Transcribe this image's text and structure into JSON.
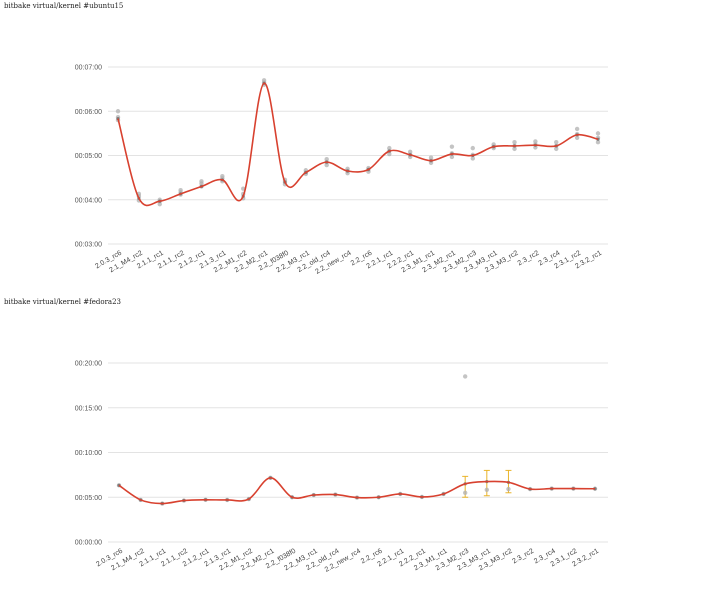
{
  "chart_data": [
    {
      "type": "scatter",
      "title": "bitbake virtual/kernel #ubuntu15",
      "xlabel": "",
      "ylabel": "",
      "y_unit": "mm:ss",
      "ylim": [
        "00:03:00",
        "00:07:00"
      ],
      "yticks": [
        "00:03:00",
        "00:04:00",
        "00:05:00",
        "00:06:00",
        "00:07:00"
      ],
      "grid": true,
      "categories": [
        "2.0.3_rc6",
        "2.1_M4_rc2",
        "2.1.1_rc1",
        "2.1.1_rc2",
        "2.1.2_rc1",
        "2.1.3_rc1",
        "2.2_M1_rc2",
        "2.2_M2_rc1",
        "2.2_f038f0",
        "2.2_M3_rc1",
        "2.2_old_rc4",
        "2.2_new_rc4",
        "2.2_rc6",
        "2.2.1_rc1",
        "2.2.2_rc1",
        "2.3_M1_rc1",
        "2.3_M2_rc1",
        "2.3_M2_rc3",
        "2.3_M3_rc1",
        "2.3_M3_rc2",
        "2.3_rc2",
        "2.3_rc4",
        "2.3.1_rc2",
        "2.3.2_rc1"
      ],
      "series": [
        {
          "role": "samples",
          "color": "#b0b0b0",
          "points": [
            [
              "2.0.3_rc6",
              "00:06:00"
            ],
            [
              "2.0.3_rc6",
              "00:05:52"
            ],
            [
              "2.0.3_rc6",
              "00:05:48"
            ],
            [
              "2.1_M4_rc2",
              "00:04:05"
            ],
            [
              "2.1_M4_rc2",
              "00:03:59"
            ],
            [
              "2.1_M4_rc2",
              "00:04:08"
            ],
            [
              "2.1.1_rc1",
              "00:04:00"
            ],
            [
              "2.1.1_rc1",
              "00:03:54"
            ],
            [
              "2.1.1_rc1",
              "00:03:58"
            ],
            [
              "2.1.1_rc2",
              "00:04:13"
            ],
            [
              "2.1.1_rc2",
              "00:04:07"
            ],
            [
              "2.1.1_rc2",
              "00:04:10"
            ],
            [
              "2.1.2_rc1",
              "00:04:22"
            ],
            [
              "2.1.2_rc1",
              "00:04:18"
            ],
            [
              "2.1.2_rc1",
              "00:04:25"
            ],
            [
              "2.1.3_rc1",
              "00:04:32"
            ],
            [
              "2.1.3_rc1",
              "00:04:25"
            ],
            [
              "2.1.3_rc1",
              "00:04:29"
            ],
            [
              "2.2_M1_rc2",
              "00:04:15"
            ],
            [
              "2.2_M1_rc2",
              "00:04:02"
            ],
            [
              "2.2_M1_rc2",
              "00:04:08"
            ],
            [
              "2.2_M2_rc1",
              "00:06:42"
            ],
            [
              "2.2_M2_rc1",
              "00:06:36"
            ],
            [
              "2.2_M2_rc1",
              "00:06:39"
            ],
            [
              "2.2_f038f0",
              "00:04:27"
            ],
            [
              "2.2_f038f0",
              "00:04:21"
            ],
            [
              "2.2_f038f0",
              "00:04:24"
            ],
            [
              "2.2_M3_rc1",
              "00:04:40"
            ],
            [
              "2.2_M3_rc1",
              "00:04:35"
            ],
            [
              "2.2_M3_rc1",
              "00:04:37"
            ],
            [
              "2.2_old_rc4",
              "00:04:55"
            ],
            [
              "2.2_old_rc4",
              "00:04:47"
            ],
            [
              "2.2_old_rc4",
              "00:04:51"
            ],
            [
              "2.2_new_rc4",
              "00:04:42"
            ],
            [
              "2.2_new_rc4",
              "00:04:36"
            ],
            [
              "2.2_new_rc4",
              "00:04:39"
            ],
            [
              "2.2_rc6",
              "00:04:43"
            ],
            [
              "2.2_rc6",
              "00:04:38"
            ],
            [
              "2.2_rc6",
              "00:04:41"
            ],
            [
              "2.2.1_rc1",
              "00:05:10"
            ],
            [
              "2.2.1_rc1",
              "00:05:02"
            ],
            [
              "2.2.1_rc1",
              "00:05:06"
            ],
            [
              "2.2.2_rc1",
              "00:05:05"
            ],
            [
              "2.2.2_rc1",
              "00:04:58"
            ],
            [
              "2.2.2_rc1",
              "00:05:01"
            ],
            [
              "2.3_M1_rc1",
              "00:04:57"
            ],
            [
              "2.3_M1_rc1",
              "00:04:50"
            ],
            [
              "2.3_M1_rc1",
              "00:04:53"
            ],
            [
              "2.3_M2_rc1",
              "00:05:12"
            ],
            [
              "2.3_M2_rc1",
              "00:05:03"
            ],
            [
              "2.3_M2_rc1",
              "00:04:58"
            ],
            [
              "2.3_M2_rc3",
              "00:05:10"
            ],
            [
              "2.3_M2_rc3",
              "00:05:01"
            ],
            [
              "2.3_M2_rc3",
              "00:04:56"
            ],
            [
              "2.3_M3_rc1",
              "00:05:15"
            ],
            [
              "2.3_M3_rc1",
              "00:05:10"
            ],
            [
              "2.3_M3_rc1",
              "00:05:12"
            ],
            [
              "2.3_M3_rc2",
              "00:05:18"
            ],
            [
              "2.3_M3_rc2",
              "00:05:09"
            ],
            [
              "2.3_M3_rc2",
              "00:05:13"
            ],
            [
              "2.3_rc2",
              "00:05:19"
            ],
            [
              "2.3_rc2",
              "00:05:11"
            ],
            [
              "2.3_rc2",
              "00:05:15"
            ],
            [
              "2.3_rc4",
              "00:05:18"
            ],
            [
              "2.3_rc4",
              "00:05:09"
            ],
            [
              "2.3_rc4",
              "00:05:13"
            ],
            [
              "2.3.1_rc2",
              "00:05:36"
            ],
            [
              "2.3.1_rc2",
              "00:05:29"
            ],
            [
              "2.3.1_rc2",
              "00:05:24"
            ],
            [
              "2.3.2_rc1",
              "00:05:30"
            ],
            [
              "2.3.2_rc1",
              "00:05:24"
            ],
            [
              "2.3.2_rc1",
              "00:05:18"
            ]
          ]
        },
        {
          "role": "mean",
          "color": "#d8412f",
          "values": [
            "00:05:50",
            "00:04:02",
            "00:03:58",
            "00:04:08",
            "00:04:18",
            "00:04:27",
            "00:04:05",
            "00:06:38",
            "00:04:24",
            "00:04:37",
            "00:04:51",
            "00:04:39",
            "00:04:41",
            "00:05:06",
            "00:05:01",
            "00:04:53",
            "00:05:02",
            "00:05:00",
            "00:05:12",
            "00:05:13",
            "00:05:14",
            "00:05:13",
            "00:05:28",
            "00:05:22"
          ]
        }
      ]
    },
    {
      "type": "scatter",
      "title": "bitbake virtual/kernel #fedora23",
      "xlabel": "",
      "ylabel": "",
      "y_unit": "mm:ss",
      "ylim": [
        "00:00:00",
        "00:20:00"
      ],
      "yticks": [
        "00:00:00",
        "00:05:00",
        "00:10:00",
        "00:15:00",
        "00:20:00"
      ],
      "grid": true,
      "categories": [
        "2.0.3_rc6",
        "2.1_M4_rc2",
        "2.1.1_rc1",
        "2.1.1_rc2",
        "2.1.2_rc1",
        "2.1.3_rc1",
        "2.2_M1_rc2",
        "2.2_M2_rc1",
        "2.2_f038f0",
        "2.2_M3_rc1",
        "2.2_old_rc4",
        "2.2_new_rc4",
        "2.2_rc6",
        "2.2.1_rc1",
        "2.2.2_rc1",
        "2.3_M1_rc1",
        "2.3_M2_rc3",
        "2.3_M3_rc1",
        "2.3_M3_rc2",
        "2.3_rc2",
        "2.3_rc4",
        "2.3.1_rc2",
        "2.3.2_rc1"
      ],
      "series": [
        {
          "role": "samples",
          "color": "#b0b0b0",
          "points": [
            [
              "2.0.3_rc6",
              "00:06:20"
            ],
            [
              "2.1_M4_rc2",
              "00:04:42"
            ],
            [
              "2.1.1_rc1",
              "00:04:18"
            ],
            [
              "2.1.1_rc2",
              "00:04:38"
            ],
            [
              "2.1.2_rc1",
              "00:04:43"
            ],
            [
              "2.1.3_rc1",
              "00:04:42"
            ],
            [
              "2.2_M1_rc2",
              "00:04:48"
            ],
            [
              "2.2_M2_rc1",
              "00:07:10"
            ],
            [
              "2.2_f038f0",
              "00:05:00"
            ],
            [
              "2.2_M3_rc1",
              "00:05:15"
            ],
            [
              "2.2_old_rc4",
              "00:05:18"
            ],
            [
              "2.2_new_rc4",
              "00:04:58"
            ],
            [
              "2.2_rc6",
              "00:05:00"
            ],
            [
              "2.2.1_rc1",
              "00:05:22"
            ],
            [
              "2.2.2_rc1",
              "00:05:02"
            ],
            [
              "2.3_M1_rc1",
              "00:05:22"
            ],
            [
              "2.3_M2_rc3",
              "00:18:30"
            ],
            [
              "2.3_M2_rc3",
              "00:05:30"
            ],
            [
              "2.3_M3_rc1",
              "00:05:50"
            ],
            [
              "2.3_M3_rc2",
              "00:05:55"
            ],
            [
              "2.3_rc2",
              "00:05:55"
            ],
            [
              "2.3_rc4",
              "00:05:58"
            ],
            [
              "2.3.1_rc2",
              "00:05:58"
            ],
            [
              "2.3.2_rc1",
              "00:05:57"
            ]
          ]
        },
        {
          "role": "error-bars",
          "color": "#e9b42a",
          "bars": [
            {
              "x": "2.3_M2_rc3",
              "low": "00:05:00",
              "high": "00:07:20"
            },
            {
              "x": "2.3_M3_rc1",
              "low": "00:05:10",
              "high": "00:08:00"
            },
            {
              "x": "2.3_M3_rc2",
              "low": "00:05:30",
              "high": "00:08:00"
            }
          ]
        },
        {
          "role": "mean",
          "color": "#d8412f",
          "values": [
            "00:06:20",
            "00:04:42",
            "00:04:18",
            "00:04:38",
            "00:04:43",
            "00:04:42",
            "00:04:48",
            "00:07:10",
            "00:05:00",
            "00:05:15",
            "00:05:18",
            "00:04:58",
            "00:05:00",
            "00:05:22",
            "00:05:02",
            "00:05:22",
            "00:06:30",
            "00:06:45",
            "00:06:40",
            "00:05:55",
            "00:05:58",
            "00:05:58",
            "00:05:57"
          ]
        }
      ]
    }
  ]
}
